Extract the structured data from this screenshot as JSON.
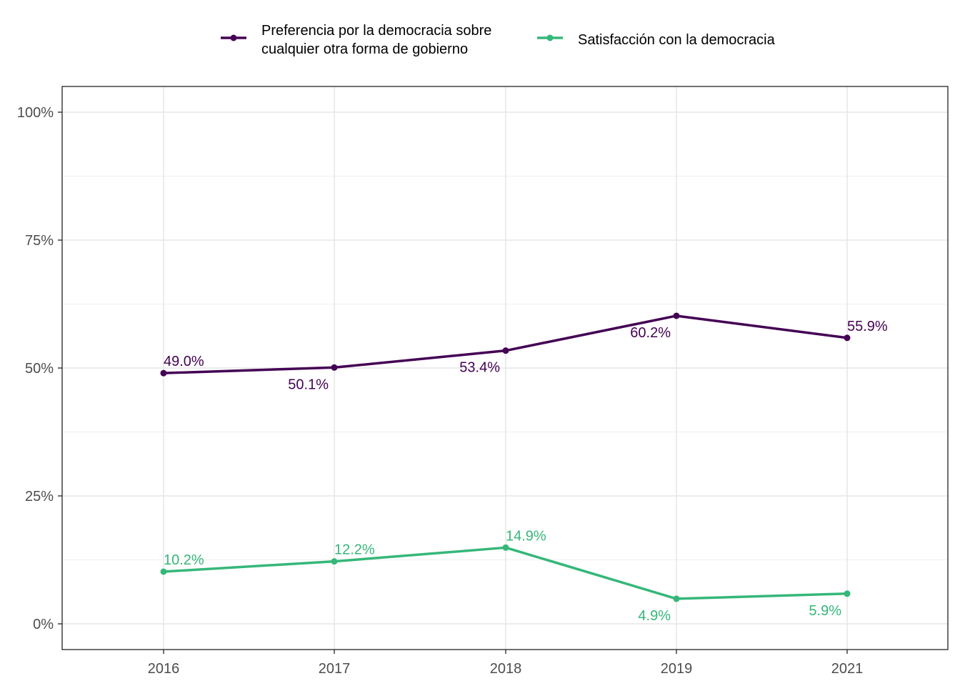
{
  "chart_data": {
    "type": "line",
    "x": [
      "2016",
      "2017",
      "2018",
      "2019",
      "2021"
    ],
    "ylim": [
      0,
      100
    ],
    "yticks": [
      0,
      25,
      50,
      75,
      100
    ],
    "ytick_labels": [
      "0%",
      "25%",
      "50%",
      "75%",
      "100%"
    ],
    "grid": true,
    "legend_position": "top",
    "series": [
      {
        "name_lines": [
          "Preferencia por la democracia sobre",
          "cualquier otra forma de gobierno"
        ],
        "color": "#440154",
        "values": [
          49.0,
          50.1,
          53.4,
          60.2,
          55.9
        ],
        "labels": [
          "49.0%",
          "50.1%",
          "53.4%",
          "60.2%",
          "55.9%"
        ],
        "label_placement": [
          "above",
          "below",
          "below",
          "below",
          "above"
        ]
      },
      {
        "name_lines": [
          "Satisfacción con la democracia"
        ],
        "color": "#35b779",
        "values": [
          10.2,
          12.2,
          14.9,
          4.9,
          5.9
        ],
        "labels": [
          "10.2%",
          "12.2%",
          "14.9%",
          "4.9%",
          "5.9%"
        ],
        "label_placement": [
          "above",
          "above",
          "above",
          "below",
          "below"
        ]
      }
    ]
  }
}
